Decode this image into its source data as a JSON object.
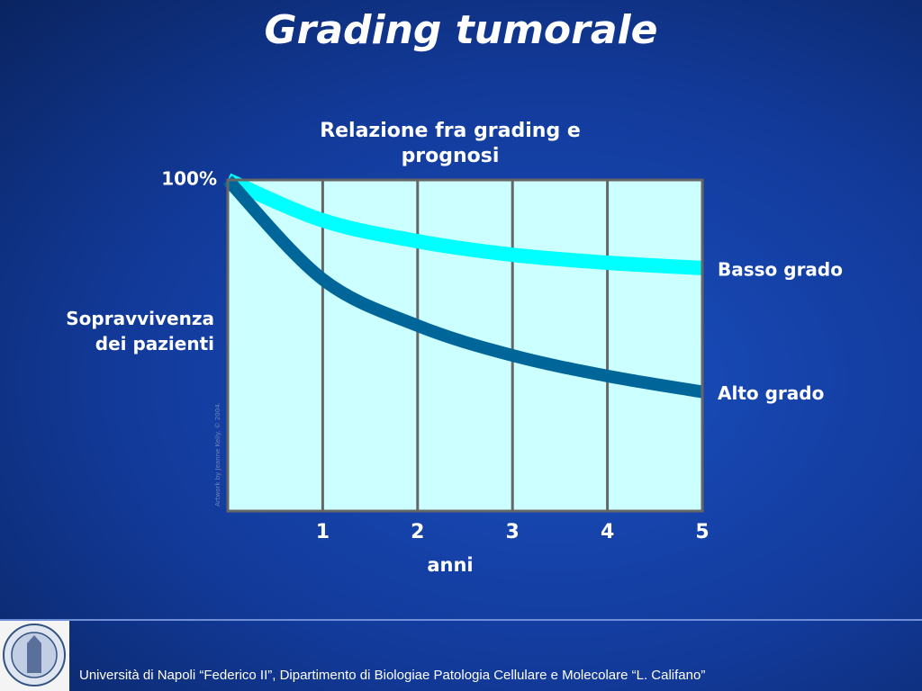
{
  "slide": {
    "title": "Grading tumorale",
    "footer": "Università di Napoli “Federico II”, Dipartimento di Biologiae Patologia  Cellulare e Molecolare “L. Califano”",
    "credit": "Artwork by Jeanne Kelly. © 2004."
  },
  "chart_data": {
    "type": "line",
    "title": "Relazione fra grading e prognosi",
    "x_label": "anni",
    "y_label": "Sopravvivenza dei pazienti",
    "x": [
      0,
      1,
      2,
      3,
      4,
      5
    ],
    "xlim": [
      0,
      5
    ],
    "xticks": [
      1,
      2,
      3,
      4,
      5
    ],
    "ylim": [
      0,
      100
    ],
    "yticks": [
      {
        "value": 100,
        "label": "100%"
      }
    ],
    "grid": true,
    "series": [
      {
        "name": "Basso grado",
        "color": "#00ffff",
        "values": [
          100,
          87.8,
          81.5,
          77.4,
          75,
          73.4
        ]
      },
      {
        "name": "Alto grado",
        "color": "#006699",
        "values": [
          100,
          70,
          56,
          47,
          40.8,
          36
        ]
      }
    ]
  }
}
